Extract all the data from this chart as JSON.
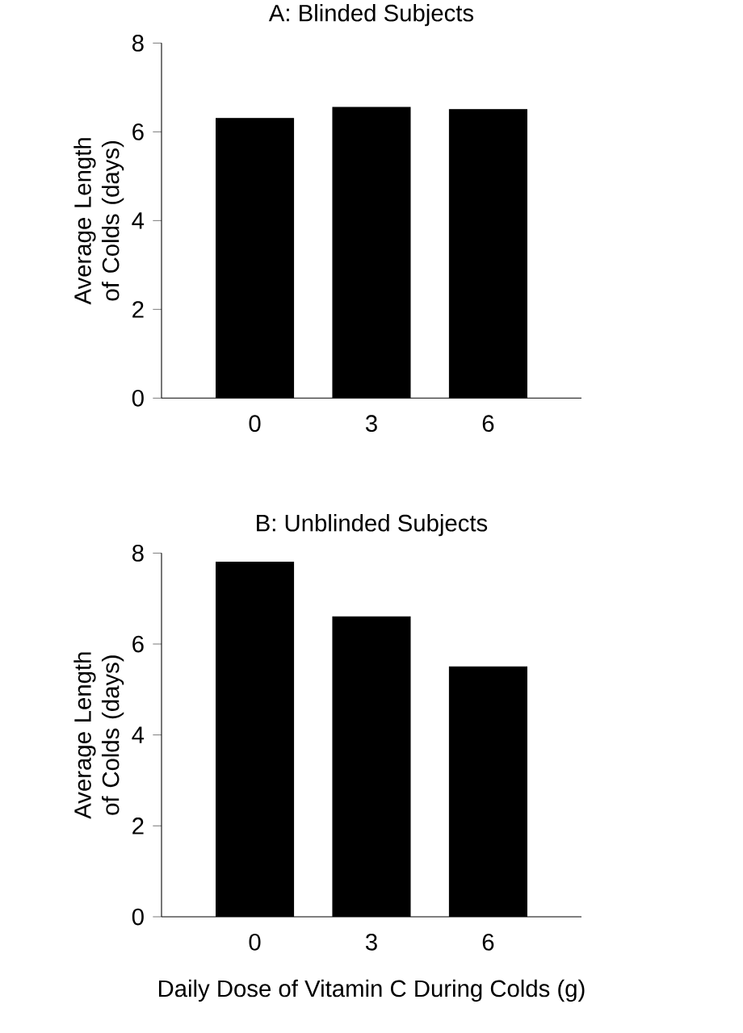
{
  "chart_data": [
    {
      "type": "bar",
      "title": "A: Blinded Subjects",
      "ylabel": "Average Length of Colds (days)",
      "categories": [
        "0",
        "3",
        "6"
      ],
      "values": [
        6.3,
        6.55,
        6.5
      ],
      "color": "#000000",
      "ylim": [
        0,
        8
      ],
      "yticks": [
        0,
        2,
        4,
        6,
        8
      ]
    },
    {
      "type": "bar",
      "title": "B: Unblinded Subjects",
      "ylabel": "Average Length of Colds (days)",
      "xlabel": "Daily Dose of Vitamin C During Colds (g)",
      "categories": [
        "0",
        "3",
        "6"
      ],
      "values": [
        7.8,
        6.6,
        5.5
      ],
      "color": "#000000",
      "ylim": [
        0,
        8
      ],
      "yticks": [
        0,
        2,
        4,
        6,
        8
      ]
    }
  ]
}
